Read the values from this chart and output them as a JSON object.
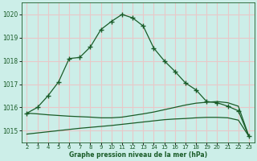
{
  "title": "Graphe pression niveau de la mer (hPa)",
  "xlabel": "Graphe pression niveau de la mer (hPa)",
  "bg_color": "#cceee8",
  "grid_color": "#e8c8c8",
  "line_color": "#1a5c28",
  "x_ticks": [
    2,
    3,
    4,
    5,
    6,
    7,
    8,
    9,
    10,
    11,
    12,
    13,
    14,
    15,
    16,
    17,
    18,
    19,
    20,
    21,
    22,
    23
  ],
  "ylim": [
    1014.5,
    1020.5
  ],
  "yticks": [
    1015,
    1016,
    1017,
    1018,
    1019,
    1020
  ],
  "main_x": [
    2,
    3,
    4,
    5,
    6,
    7,
    8,
    9,
    10,
    11,
    12,
    13,
    14,
    15,
    16,
    17,
    18,
    19,
    20,
    21,
    22,
    23
  ],
  "main_y": [
    1015.75,
    1016.0,
    1016.5,
    1017.1,
    1018.1,
    1018.15,
    1018.6,
    1019.35,
    1019.7,
    1020.0,
    1019.85,
    1019.5,
    1018.55,
    1018.0,
    1017.55,
    1017.05,
    1016.75,
    1016.25,
    1016.2,
    1016.05,
    1015.85,
    1014.75
  ],
  "line2_x": [
    2,
    3,
    4,
    5,
    6,
    7,
    8,
    9,
    10,
    11,
    12,
    13,
    14,
    15,
    16,
    17,
    18,
    19,
    20,
    21,
    22,
    23
  ],
  "line2_y": [
    1015.75,
    1015.72,
    1015.68,
    1015.65,
    1015.62,
    1015.6,
    1015.58,
    1015.55,
    1015.55,
    1015.58,
    1015.65,
    1015.72,
    1015.8,
    1015.9,
    1016.0,
    1016.1,
    1016.18,
    1016.22,
    1016.25,
    1016.2,
    1016.05,
    1014.75
  ],
  "line3_x": [
    2,
    3,
    4,
    5,
    6,
    7,
    8,
    9,
    10,
    11,
    12,
    13,
    14,
    15,
    16,
    17,
    18,
    19,
    20,
    21,
    22,
    23
  ],
  "line3_y": [
    1014.85,
    1014.9,
    1014.95,
    1015.0,
    1015.05,
    1015.1,
    1015.14,
    1015.18,
    1015.22,
    1015.27,
    1015.32,
    1015.37,
    1015.42,
    1015.47,
    1015.5,
    1015.52,
    1015.55,
    1015.57,
    1015.57,
    1015.55,
    1015.45,
    1014.75
  ]
}
